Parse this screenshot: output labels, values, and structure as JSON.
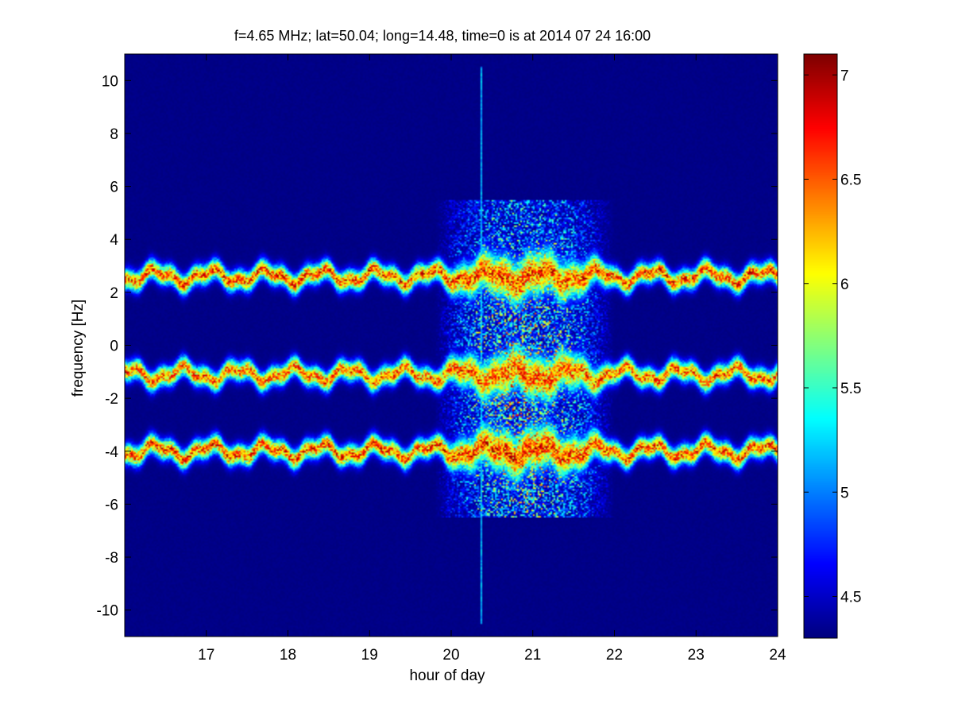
{
  "chart_data": {
    "type": "heatmap",
    "title": "f=4.65 MHz;  lat=50.04; long=14.48, time=0 is at 2014 07 24 16:00",
    "xlabel": "hour of day",
    "ylabel": "frequency [Hz]",
    "xlim": [
      16.0,
      24.0
    ],
    "ylim": [
      -11.0,
      11.0
    ],
    "x_ticks": [
      17,
      18,
      19,
      20,
      21,
      22,
      23,
      24
    ],
    "y_ticks": [
      -10,
      -8,
      -6,
      -4,
      -2,
      0,
      2,
      4,
      6,
      8,
      10
    ],
    "colorbar": {
      "range": [
        4.3,
        7.1
      ],
      "ticks": [
        "4.5",
        "5",
        "5.5",
        "6",
        "6.5",
        "7"
      ],
      "tick_values": [
        4.5,
        5.0,
        5.5,
        6.0,
        6.5,
        7.0
      ],
      "colormap": "jet"
    },
    "background_level": 4.3,
    "spectral_bands": [
      {
        "center_hz": 2.6,
        "peak_level": 7.1
      },
      {
        "center_hz": -1.1,
        "peak_level": 7.0
      },
      {
        "center_hz": -4.0,
        "peak_level": 7.1
      }
    ],
    "disturbance": {
      "start_hour": 19.8,
      "end_hour": 22.0,
      "peak_level": 7.1
    },
    "spike": {
      "hour": 20.37,
      "level": 5.0
    },
    "grid": false
  }
}
